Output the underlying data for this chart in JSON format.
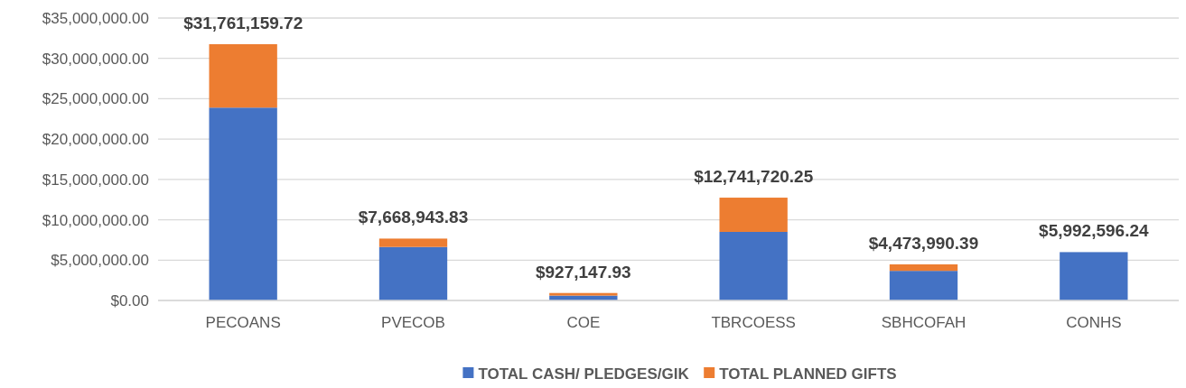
{
  "chart_data": {
    "type": "bar",
    "stacked": true,
    "categories": [
      "PECOANS",
      "PVECOB",
      "COE",
      "TBRCOESS",
      "SBHCOFAH",
      "CONHS"
    ],
    "series": [
      {
        "name": "TOTAL CASH/ PLEDGES/GIK",
        "color": "#4472c4",
        "values": [
          23900000,
          6630000,
          600000,
          8500000,
          3670000,
          5992596.24
        ]
      },
      {
        "name": "TOTAL PLANNED GIFTS",
        "color": "#ed7d31",
        "values": [
          7861159.72,
          1038943.83,
          327147.93,
          4241720.25,
          803990.39,
          0
        ]
      }
    ],
    "totals": [
      "$31,761,159.72",
      "$7,668,943.83",
      "$927,147.93",
      "$12,741,720.25",
      "$4,473,990.39",
      "$5,992,596.24"
    ],
    "ylim": [
      0,
      35000000
    ],
    "yticks": [
      {
        "value": 0,
        "label": "$0.00"
      },
      {
        "value": 5000000,
        "label": "$5,000,000.00"
      },
      {
        "value": 10000000,
        "label": "$10,000,000.00"
      },
      {
        "value": 15000000,
        "label": "$15,000,000.00"
      },
      {
        "value": 20000000,
        "label": "$20,000,000.00"
      },
      {
        "value": 25000000,
        "label": "$25,000,000.00"
      },
      {
        "value": 30000000,
        "label": "$30,000,000.00"
      },
      {
        "value": 35000000,
        "label": "$35,000,000.00"
      }
    ],
    "grid": "y",
    "legend": "bottom"
  }
}
